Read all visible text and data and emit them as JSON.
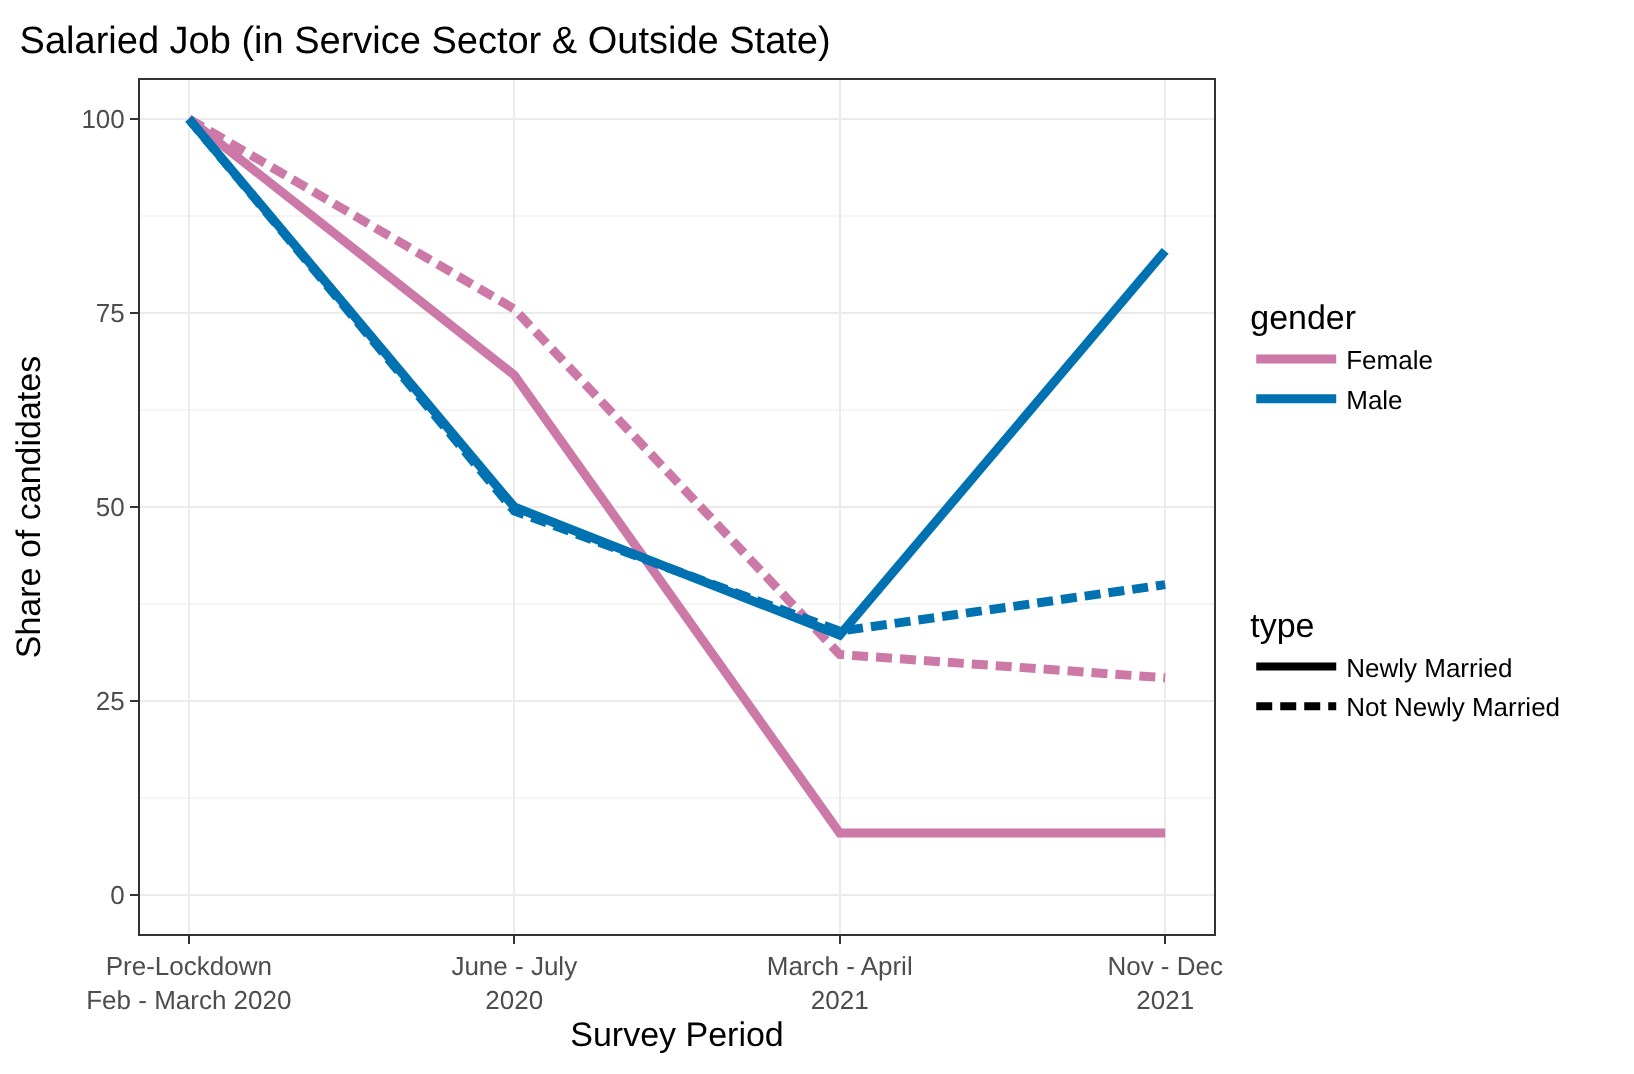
{
  "chart_data": {
    "type": "line",
    "title": "Salaried Job (in Service Sector & Outside State)",
    "xlabel": "Survey Period",
    "ylabel": "Share of candidates",
    "legend_title": "gender",
    "annotations": [
      "type",
      "Newly Married",
      "Not Newly Married"
    ],
    "categories": [
      "Pre-Lockdown\nFeb - March 2020",
      "June - July\n2020",
      "March - April\n2021",
      "Nov - Dec\n2021"
    ],
    "series": [
      {
        "name": "Female",
        "color": "#cc79a7",
        "line_style": "solid",
        "values": [
          100,
          67,
          8,
          8
        ]
      },
      {
        "color": "#cc79a7",
        "line_style": "dashed",
        "values": [
          100,
          75.5,
          31,
          28
        ]
      },
      {
        "name": "Male",
        "color": "#0072b2",
        "line_style": "solid",
        "values": [
          100,
          50,
          33.5,
          83
        ]
      },
      {
        "color": "#0072b2",
        "line_style": "dashed",
        "values": [
          100,
          49.5,
          34,
          40
        ]
      }
    ],
    "ylim": [
      -5,
      105
    ],
    "yticks": [
      0,
      25,
      50,
      75,
      100
    ],
    "grid": true,
    "legend": "right",
    "marker": "none"
  }
}
